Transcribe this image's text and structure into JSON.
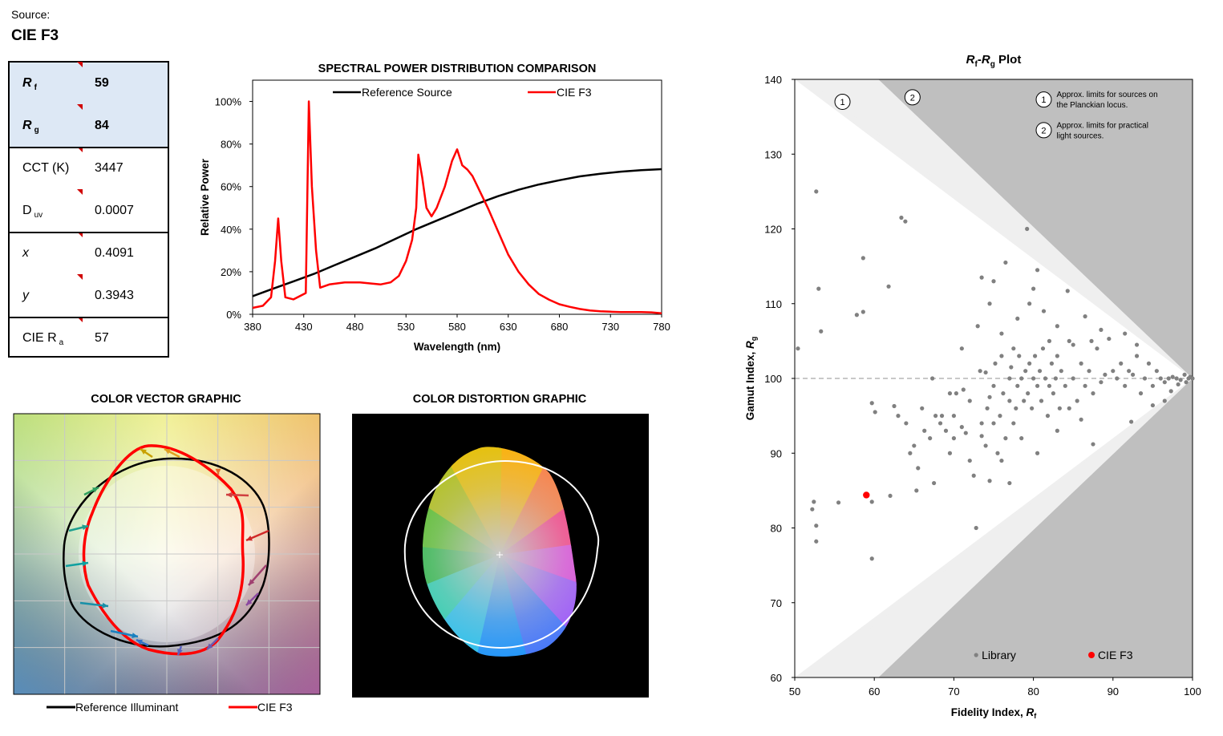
{
  "header": {
    "source_label": "Source:",
    "source_name": "CIE F3"
  },
  "metrics": [
    {
      "label_main": "R",
      "label_sub": "f",
      "value": "59",
      "bold": true,
      "italic": true
    },
    {
      "label_main": "R",
      "label_sub": "g",
      "value": "84",
      "bold": true,
      "italic": true
    },
    {
      "label_main": "CCT (K)",
      "label_sub": "",
      "value": "3447",
      "bold": false,
      "italic": false
    },
    {
      "label_main": "D",
      "label_sub": "uv",
      "value": "0.0007",
      "bold": false,
      "italic": false
    },
    {
      "label_main": "x",
      "label_sub": "",
      "value": "0.4091",
      "bold": false,
      "italic": true
    },
    {
      "label_main": "y",
      "label_sub": "",
      "value": "0.3943",
      "bold": false,
      "italic": true
    },
    {
      "label_main": "CIE R",
      "label_sub": "a",
      "value": "57",
      "bold": false,
      "italic": false
    }
  ],
  "colors": {
    "reference": "#000000",
    "test": "#ff0000",
    "library": "#808080",
    "highlight_row": "#dde8f5"
  },
  "chart_data": [
    {
      "type": "line",
      "title": "SPECTRAL POWER DISTRIBUTION COMPARISON",
      "xlabel": "Wavelength (nm)",
      "ylabel": "Relative Power",
      "xlim": [
        380,
        780
      ],
      "ylim": [
        0,
        1.1
      ],
      "xticks": [
        380,
        430,
        480,
        530,
        580,
        630,
        680,
        730,
        780
      ],
      "xtick_labels": [
        "380",
        "430",
        "480",
        "530",
        "580",
        "630",
        "680",
        "730",
        "780"
      ],
      "yticks": [
        0,
        0.2,
        0.4,
        0.6,
        0.8,
        1.0
      ],
      "ytick_labels": [
        "0%",
        "20%",
        "40%",
        "60%",
        "80%",
        "100%"
      ],
      "legend_position": "top",
      "series": [
        {
          "name": "Reference Source",
          "color": "#000000",
          "x": [
            380,
            400,
            420,
            440,
            460,
            480,
            500,
            520,
            540,
            560,
            580,
            600,
            620,
            640,
            660,
            680,
            700,
            720,
            740,
            760,
            780
          ],
          "y": [
            0.085,
            0.12,
            0.155,
            0.19,
            0.23,
            0.27,
            0.31,
            0.355,
            0.4,
            0.44,
            0.48,
            0.52,
            0.555,
            0.585,
            0.61,
            0.63,
            0.648,
            0.66,
            0.67,
            0.677,
            0.682
          ]
        },
        {
          "name": "CIE F3",
          "color": "#ff0000",
          "x": [
            380,
            390,
            398,
            402,
            405,
            408,
            412,
            420,
            428,
            432,
            435,
            438,
            442,
            446,
            455,
            470,
            485,
            495,
            505,
            515,
            523,
            530,
            536,
            540,
            542,
            546,
            550,
            555,
            560,
            568,
            575,
            580,
            585,
            590,
            595,
            600,
            610,
            620,
            630,
            640,
            650,
            660,
            670,
            680,
            690,
            700,
            710,
            720,
            730,
            740,
            750,
            760,
            770,
            780
          ],
          "y": [
            0.03,
            0.04,
            0.08,
            0.25,
            0.45,
            0.25,
            0.08,
            0.07,
            0.09,
            0.1,
            1.0,
            0.6,
            0.3,
            0.125,
            0.14,
            0.15,
            0.15,
            0.145,
            0.14,
            0.15,
            0.18,
            0.25,
            0.35,
            0.5,
            0.75,
            0.64,
            0.5,
            0.46,
            0.5,
            0.6,
            0.72,
            0.775,
            0.7,
            0.68,
            0.65,
            0.6,
            0.5,
            0.39,
            0.28,
            0.2,
            0.14,
            0.095,
            0.068,
            0.047,
            0.035,
            0.025,
            0.018,
            0.014,
            0.012,
            0.01,
            0.01,
            0.01,
            0.009,
            0.005
          ]
        }
      ]
    },
    {
      "type": "scatter",
      "title_main": "R",
      "title_sub1": "f",
      "title_dash": "-",
      "title_main2": "R",
      "title_sub2": "g",
      "title_tail": " Plot",
      "xlabel_main": "Fidelity Index, ",
      "xlabel_var": "R",
      "xlabel_sub": "f",
      "ylabel_main": "Gamut Index, ",
      "ylabel_var": "R",
      "ylabel_sub": "g",
      "xlim": [
        50,
        100
      ],
      "ylim": [
        60,
        140
      ],
      "xticks": [
        50,
        60,
        70,
        80,
        90,
        100
      ],
      "yticks": [
        60,
        70,
        80,
        90,
        100,
        110,
        120,
        130,
        140
      ],
      "reference_line": 100,
      "zones": [
        {
          "id": "1",
          "note": "Approx. limits for sources on the Planckian locus."
        },
        {
          "id": "2",
          "note": "Approx. limits for practical light sources."
        }
      ],
      "legend_position": "bottom-right",
      "series": [
        {
          "name": "Library",
          "color": "#808080",
          "points": [
            [
              50.4,
              104
            ],
            [
              52.2,
              82.5
            ],
            [
              52.7,
              80.3
            ],
            [
              52.7,
              78.2
            ],
            [
              52.4,
              83.5
            ],
            [
              52.7,
              125
            ],
            [
              53,
              112
            ],
            [
              53.3,
              106.3
            ],
            [
              55.5,
              83.4
            ],
            [
              57.8,
              108.5
            ],
            [
              58.6,
              108.9
            ],
            [
              58.6,
              116.1
            ],
            [
              59.7,
              83.5
            ],
            [
              59.7,
              75.9
            ],
            [
              59.7,
              96.7
            ],
            [
              60.1,
              95.5
            ],
            [
              61.8,
              112.3
            ],
            [
              62,
              84.3
            ],
            [
              62.5,
              96.3
            ],
            [
              63.4,
              121.5
            ],
            [
              63.9,
              121
            ],
            [
              63,
              95
            ],
            [
              64,
              94
            ],
            [
              64.5,
              90
            ],
            [
              65,
              91
            ],
            [
              65.3,
              85
            ],
            [
              65.5,
              88
            ],
            [
              66,
              96
            ],
            [
              66.3,
              93
            ],
            [
              67,
              92
            ],
            [
              67.5,
              86
            ],
            [
              67.3,
              100
            ],
            [
              67.7,
              95
            ],
            [
              68.3,
              94
            ],
            [
              69,
              93
            ],
            [
              69.5,
              90
            ],
            [
              70,
              92
            ],
            [
              70,
              95
            ],
            [
              70.3,
              98
            ],
            [
              71,
              93.5
            ],
            [
              71.2,
              98.5
            ],
            [
              71.5,
              92.7
            ],
            [
              72,
              89
            ],
            [
              72.5,
              87
            ],
            [
              72.8,
              80
            ],
            [
              73.3,
              101
            ],
            [
              73.5,
              92.3
            ],
            [
              74,
              91
            ],
            [
              74,
              100.8
            ],
            [
              74.2,
              96
            ],
            [
              74.5,
              86.3
            ],
            [
              75,
              94
            ],
            [
              75,
              99
            ],
            [
              75.2,
              102
            ],
            [
              75.5,
              90
            ],
            [
              75.8,
              95
            ],
            [
              76,
              103
            ],
            [
              76.2,
              98
            ],
            [
              76.5,
              92
            ],
            [
              77,
              97
            ],
            [
              77,
              100
            ],
            [
              77.2,
              101.5
            ],
            [
              77.5,
              94
            ],
            [
              77.8,
              96
            ],
            [
              78,
              99
            ],
            [
              78.2,
              103
            ],
            [
              78.5,
              100
            ],
            [
              78.8,
              97
            ],
            [
              79,
              101
            ],
            [
              79.3,
              98
            ],
            [
              79.5,
              102
            ],
            [
              79.8,
              96
            ],
            [
              80,
              100
            ],
            [
              80.2,
              103
            ],
            [
              80.5,
              99
            ],
            [
              80.8,
              101
            ],
            [
              81,
              97
            ],
            [
              81.2,
              104
            ],
            [
              81.5,
              100
            ],
            [
              81.8,
              95
            ],
            [
              82,
              99
            ],
            [
              82.3,
              102
            ],
            [
              82.5,
              98
            ],
            [
              82.8,
              100
            ],
            [
              83,
              103
            ],
            [
              83.3,
              96
            ],
            [
              83.5,
              101
            ],
            [
              84,
              99
            ],
            [
              84.5,
              105
            ],
            [
              85,
              100
            ],
            [
              85.5,
              97
            ],
            [
              86,
              102
            ],
            [
              86.5,
              99
            ],
            [
              87,
              101
            ],
            [
              87.5,
              98
            ],
            [
              88,
              104
            ],
            [
              88.5,
              99.5
            ],
            [
              89,
              100.5
            ],
            [
              90,
              101
            ],
            [
              90.5,
              100
            ],
            [
              91,
              102
            ],
            [
              91.5,
              99
            ],
            [
              92,
              101
            ],
            [
              92.5,
              100.5
            ],
            [
              93,
              103
            ],
            [
              93.5,
              98
            ],
            [
              94,
              100
            ],
            [
              94.5,
              102
            ],
            [
              95,
              99
            ],
            [
              95.5,
              101
            ],
            [
              96,
              100
            ],
            [
              96.5,
              99.5
            ],
            [
              97,
              100
            ],
            [
              97.5,
              100.2
            ],
            [
              98,
              100
            ],
            [
              98.5,
              99.8
            ],
            [
              99,
              100.5
            ],
            [
              99.2,
              99.5
            ],
            [
              99.5,
              100
            ],
            [
              99.7,
              100.2
            ],
            [
              100,
              100
            ],
            [
              78,
              108
            ],
            [
              79.5,
              110
            ],
            [
              80,
              112
            ],
            [
              80.5,
              114.5
            ],
            [
              76.5,
              115.5
            ],
            [
              75,
              113
            ],
            [
              73.5,
              113.5
            ],
            [
              79.2,
              120
            ],
            [
              81.3,
              109
            ],
            [
              83,
              107
            ],
            [
              84.3,
              111.7
            ],
            [
              85,
              104.5
            ],
            [
              86.5,
              108.3
            ],
            [
              87.3,
              105
            ],
            [
              88.5,
              106.5
            ],
            [
              89.5,
              105.3
            ],
            [
              91.5,
              106
            ],
            [
              93,
              104.5
            ],
            [
              77.5,
              104
            ],
            [
              82,
              105
            ],
            [
              76,
              106
            ],
            [
              74.5,
              110
            ],
            [
              73,
              107
            ],
            [
              71,
              104
            ],
            [
              69.5,
              98
            ],
            [
              68.5,
              95
            ],
            [
              72,
              97
            ],
            [
              73.5,
              94
            ],
            [
              74.5,
              97.5
            ],
            [
              76,
              89
            ],
            [
              77,
              86
            ],
            [
              78.5,
              92
            ],
            [
              80.5,
              90
            ],
            [
              83,
              93
            ],
            [
              84.5,
              96
            ],
            [
              86,
              94.5
            ],
            [
              87.5,
              91.2
            ],
            [
              92.3,
              94.2
            ],
            [
              95,
              96.4
            ],
            [
              96.5,
              97
            ],
            [
              97.3,
              98.3
            ],
            [
              98.2,
              99.2
            ]
          ]
        },
        {
          "name": "CIE F3",
          "color": "#ff0000",
          "points": [
            [
              59,
              84.4
            ]
          ]
        }
      ]
    },
    {
      "type": "other",
      "title": "COLOR VECTOR GRAPHIC",
      "legend": [
        "Reference Illuminant",
        "CIE F3"
      ],
      "legend_position": "bottom"
    },
    {
      "type": "other",
      "title": "COLOR DISTORTION GRAPHIC"
    }
  ]
}
